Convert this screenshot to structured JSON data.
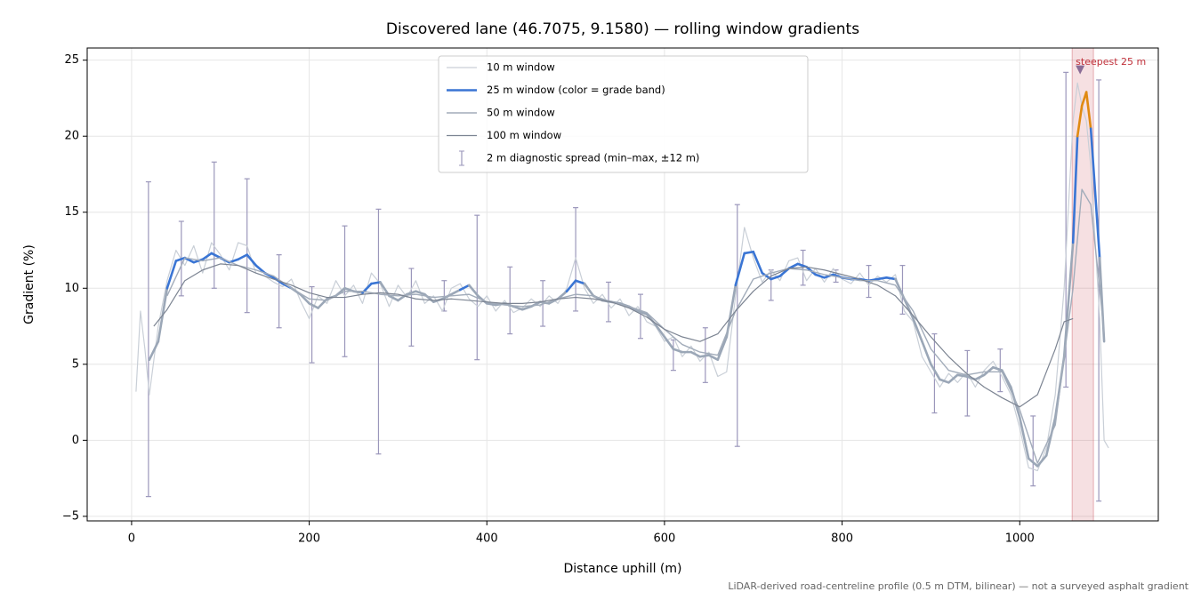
{
  "chart_data": {
    "type": "line",
    "title": "Discovered lane (46.7075, 9.1580) — rolling window gradients",
    "xlabel": "Distance uphill (m)",
    "ylabel": "Gradient (%)",
    "footnote": "LiDAR-derived road-centreline profile (0.5 m DTM, bilinear) — not a surveyed asphalt gradient",
    "xlim": [
      -50,
      1156
    ],
    "ylim": [
      -5.3,
      25.8
    ],
    "xticks": [
      0,
      200,
      400,
      600,
      800,
      1000
    ],
    "yticks": [
      {
        "value": -5,
        "label": "−5"
      },
      0,
      5,
      10,
      15,
      20,
      25
    ],
    "grid": true,
    "legend": "upper center",
    "series": [
      {
        "name": "10 m window",
        "color": "#c9cfd7",
        "x": [
          5,
          10,
          15,
          20,
          30,
          40,
          50,
          60,
          70,
          80,
          90,
          100,
          110,
          120,
          130,
          140,
          150,
          160,
          170,
          180,
          190,
          200,
          210,
          220,
          230,
          240,
          250,
          260,
          270,
          280,
          290,
          300,
          310,
          320,
          330,
          340,
          350,
          360,
          370,
          380,
          390,
          400,
          410,
          420,
          430,
          440,
          450,
          460,
          470,
          480,
          490,
          500,
          510,
          520,
          530,
          540,
          550,
          560,
          570,
          580,
          590,
          600,
          610,
          620,
          630,
          640,
          650,
          660,
          670,
          680,
          690,
          700,
          710,
          720,
          730,
          740,
          750,
          760,
          770,
          780,
          790,
          800,
          810,
          820,
          830,
          840,
          850,
          860,
          870,
          880,
          890,
          900,
          910,
          920,
          930,
          940,
          950,
          960,
          970,
          980,
          990,
          1000,
          1010,
          1020,
          1030,
          1040,
          1050,
          1060,
          1065,
          1070,
          1075,
          1080,
          1090,
          1095,
          1100
        ],
        "values": [
          3.2,
          8.5,
          6,
          3,
          7.5,
          10.5,
          12.5,
          11.5,
          12.8,
          11.0,
          13.0,
          12.2,
          11.2,
          13.0,
          12.8,
          11.0,
          10.8,
          10.4,
          10.1,
          10.6,
          9.2,
          8.0,
          9.5,
          9.0,
          10.5,
          9.5,
          10.2,
          9.0,
          11.0,
          10.3,
          8.8,
          10.2,
          9.4,
          10.5,
          9.0,
          9.5,
          8.5,
          10.0,
          10.3,
          9.3,
          8.8,
          9.5,
          8.5,
          9.2,
          8.4,
          8.7,
          9.3,
          8.8,
          9.5,
          9.0,
          10.0,
          12.0,
          10.0,
          9.0,
          9.6,
          8.7,
          9.3,
          8.2,
          8.8,
          7.8,
          7.5,
          6.5,
          6.8,
          5.5,
          6.2,
          5.2,
          5.8,
          4.2,
          4.5,
          9.5,
          14.0,
          12.0,
          10.4,
          11.2,
          10.5,
          11.8,
          12.0,
          10.5,
          11.3,
          10.4,
          11.3,
          10.6,
          10.3,
          11.0,
          10.2,
          10.8,
          10.4,
          10.9,
          8.5,
          7.8,
          5.5,
          4.5,
          3.5,
          4.4,
          3.8,
          4.5,
          3.5,
          4.6,
          5.2,
          4.2,
          3.0,
          0.8,
          -1.8,
          -2.0,
          -0.5,
          3.0,
          10,
          21,
          23.5,
          22,
          21,
          18,
          8,
          0,
          -0.5
        ],
        "width": 1.2
      },
      {
        "name": "25 m window (color = grade band)",
        "color": "#3a75d4",
        "x": [
          20,
          30,
          40,
          50,
          60,
          70,
          80,
          90,
          100,
          110,
          120,
          130,
          140,
          150,
          160,
          170,
          180,
          190,
          200,
          210,
          220,
          230,
          240,
          250,
          260,
          270,
          280,
          290,
          300,
          310,
          320,
          330,
          340,
          350,
          360,
          370,
          380,
          390,
          400,
          410,
          420,
          430,
          440,
          450,
          460,
          470,
          480,
          490,
          500,
          510,
          520,
          530,
          540,
          550,
          560,
          570,
          580,
          590,
          600,
          610,
          620,
          630,
          640,
          650,
          660,
          670,
          680,
          690,
          700,
          710,
          720,
          730,
          740,
          750,
          760,
          770,
          780,
          790,
          800,
          810,
          820,
          830,
          840,
          850,
          860,
          870,
          880,
          890,
          900,
          910,
          920,
          930,
          940,
          950,
          960,
          970,
          980,
          990,
          1000,
          1010,
          1020,
          1030,
          1040,
          1050,
          1060,
          1065,
          1070,
          1075,
          1080,
          1090,
          1095
        ],
        "values": [
          5.3,
          6.5,
          10,
          11.8,
          12.0,
          11.7,
          11.9,
          12.3,
          12.0,
          11.7,
          11.9,
          12.2,
          11.5,
          11.0,
          10.7,
          10.3,
          10.0,
          9.6,
          9.0,
          8.7,
          9.3,
          9.5,
          10.0,
          9.8,
          9.7,
          10.3,
          10.4,
          9.5,
          9.2,
          9.6,
          9.8,
          9.6,
          9.1,
          9.3,
          9.6,
          9.9,
          10.2,
          9.5,
          9.0,
          8.9,
          9.0,
          8.8,
          8.6,
          8.8,
          9.1,
          9.0,
          9.3,
          9.8,
          10.5,
          10.3,
          9.5,
          9.2,
          9.1,
          9.0,
          8.8,
          8.5,
          8.3,
          7.6,
          6.8,
          6.0,
          5.8,
          5.8,
          5.5,
          5.6,
          5.3,
          6.8,
          10.2,
          12.3,
          12.4,
          11.0,
          10.6,
          10.8,
          11.3,
          11.6,
          11.4,
          10.9,
          10.7,
          10.9,
          10.7,
          10.6,
          10.6,
          10.5,
          10.6,
          10.7,
          10.6,
          9.3,
          8.0,
          6.5,
          5.0,
          4.0,
          3.8,
          4.3,
          4.2,
          4.0,
          4.3,
          4.8,
          4.6,
          3.5,
          1.5,
          -1.2,
          -1.7,
          -1.0,
          1.5,
          5.5,
          13,
          20,
          22,
          22.9,
          20.5,
          12,
          6.5
        ],
        "width": 2.6,
        "band_base_color": "#9ba7b7",
        "grade_bands": [
          {
            "min": 10,
            "color": "#3a75d4"
          },
          {
            "min": 20,
            "color": "#e08a12"
          }
        ]
      },
      {
        "name": "50 m window",
        "color": "#a2acba",
        "x": [
          40,
          60,
          80,
          100,
          120,
          140,
          160,
          180,
          200,
          220,
          240,
          260,
          280,
          300,
          320,
          340,
          360,
          380,
          400,
          420,
          440,
          460,
          480,
          500,
          520,
          540,
          560,
          580,
          600,
          620,
          640,
          660,
          680,
          700,
          720,
          740,
          760,
          780,
          800,
          820,
          840,
          860,
          880,
          900,
          920,
          940,
          960,
          980,
          1000,
          1020,
          1040,
          1060,
          1070,
          1080,
          1090,
          1095
        ],
        "values": [
          9.5,
          12.0,
          11.8,
          12.0,
          11.5,
          11.2,
          10.8,
          10.0,
          9.3,
          9.2,
          9.8,
          9.8,
          9.6,
          9.5,
          9.6,
          9.4,
          9.5,
          9.6,
          9.1,
          8.9,
          8.8,
          8.9,
          9.3,
          9.6,
          9.5,
          9.1,
          8.8,
          8.4,
          7.3,
          6.3,
          5.8,
          5.6,
          8.5,
          10.6,
          11.0,
          11.3,
          11.2,
          10.9,
          10.7,
          10.5,
          10.5,
          10.2,
          8.5,
          6.0,
          4.6,
          4.3,
          4.5,
          4.5,
          2.0,
          -1.5,
          1.0,
          10,
          16.5,
          15.5,
          10,
          7
        ],
        "width": 1.4
      },
      {
        "name": "100 m window",
        "color": "#7c8492",
        "x": [
          25,
          40,
          60,
          80,
          100,
          120,
          140,
          160,
          180,
          200,
          220,
          240,
          260,
          280,
          300,
          320,
          340,
          360,
          380,
          400,
          420,
          440,
          460,
          480,
          500,
          520,
          540,
          560,
          580,
          600,
          620,
          640,
          660,
          680,
          700,
          720,
          740,
          760,
          780,
          800,
          820,
          840,
          860,
          880,
          900,
          920,
          940,
          960,
          980,
          1000,
          1020,
          1040,
          1050,
          1060
        ],
        "values": [
          7.5,
          8.6,
          10.5,
          11.2,
          11.6,
          11.5,
          11.0,
          10.6,
          10.2,
          9.7,
          9.4,
          9.4,
          9.6,
          9.7,
          9.6,
          9.3,
          9.2,
          9.3,
          9.2,
          9.1,
          9.0,
          9.0,
          9.1,
          9.3,
          9.4,
          9.3,
          9.1,
          8.7,
          8.1,
          7.3,
          6.8,
          6.5,
          7.0,
          8.5,
          9.8,
          10.8,
          11.3,
          11.4,
          11.2,
          10.9,
          10.6,
          10.2,
          9.5,
          8.2,
          6.8,
          5.5,
          4.4,
          3.5,
          2.8,
          2.2,
          3.0,
          6.0,
          7.8,
          8.0
        ],
        "width": 1.2
      }
    ],
    "error_bars": {
      "name": "2 m diagnostic spread (min–max, ±12 m)",
      "color": "#9b97bb",
      "x": [
        19,
        56,
        93,
        130,
        166,
        203,
        240,
        278,
        315,
        352,
        389,
        426,
        463,
        500,
        537,
        573,
        610,
        646,
        682,
        720,
        756,
        793,
        830,
        868,
        904,
        941,
        978,
        1015,
        1052,
        1089
      ],
      "high": [
        17.0,
        14.4,
        18.3,
        17.2,
        12.2,
        10.1,
        14.1,
        15.2,
        11.3,
        10.5,
        14.8,
        11.4,
        10.5,
        15.3,
        10.4,
        9.6,
        6.6,
        7.4,
        15.5,
        11.2,
        12.5,
        11.2,
        11.5,
        11.5,
        7.0,
        5.9,
        6.0,
        1.6,
        24.2,
        23.7
      ],
      "low": [
        -3.7,
        9.5,
        10.0,
        8.4,
        7.4,
        5.1,
        5.5,
        -0.9,
        6.2,
        8.5,
        5.3,
        7.0,
        7.5,
        8.5,
        7.8,
        6.7,
        4.6,
        3.8,
        -0.4,
        9.2,
        10.2,
        10.4,
        9.4,
        8.3,
        1.8,
        1.6,
        3.2,
        -3.0,
        3.5,
        -4.0
      ]
    },
    "highlight": {
      "label": "steepest 25 m",
      "xrange": [
        1059,
        1083
      ],
      "marker": [
        1068,
        24.3
      ],
      "color": "#c0303a"
    }
  }
}
